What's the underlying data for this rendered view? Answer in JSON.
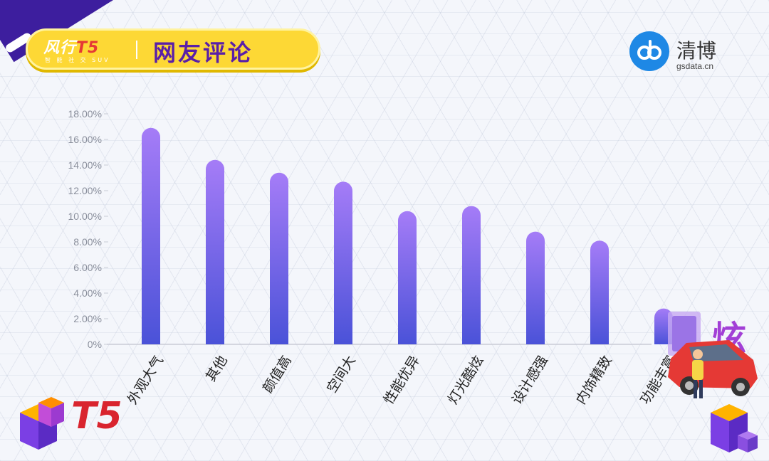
{
  "header": {
    "brand_logo_main": "风行",
    "brand_logo_model": "T5",
    "brand_tagline": "智 能 社 交 SUV",
    "title": "网友评论"
  },
  "watermark": {
    "name": "清博",
    "domain": "gsdata.cn"
  },
  "chart_data": {
    "type": "bar",
    "categories": [
      "外观大气",
      "其他",
      "颜值高",
      "空间大",
      "性能优异",
      "灯光酷炫",
      "设计感强",
      "内饰精致",
      "功能丰富"
    ],
    "values": [
      16.9,
      14.4,
      13.4,
      12.7,
      10.4,
      10.8,
      8.8,
      8.1,
      2.8
    ],
    "ylim": [
      0,
      18
    ],
    "yticks": [
      0,
      2,
      4,
      6,
      8,
      10,
      12,
      14,
      16,
      18
    ],
    "ytick_labels": [
      "0%",
      "2.00%",
      "4.00%",
      "6.00%",
      "8.00%",
      "10.00%",
      "12.00%",
      "14.00%",
      "16.00%",
      "18.00%"
    ],
    "title": "",
    "xlabel": "",
    "ylabel": "",
    "grid": false,
    "bar_color_top": "#a57cf7",
    "bar_color_bottom": "#4a52d8"
  },
  "decor": {
    "left_logo_text": "T5",
    "right_badge_text": "炫"
  }
}
